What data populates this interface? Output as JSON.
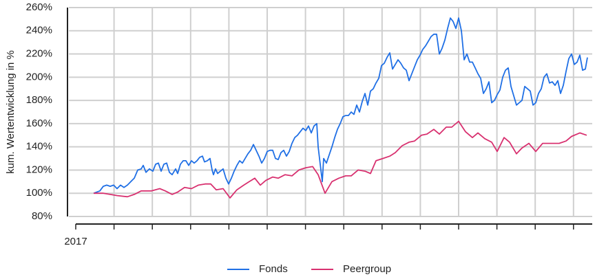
{
  "chart_data": {
    "type": "line",
    "y_label": "kum. Wertentwicklung in %",
    "xlim": [
      0,
      750
    ],
    "xticks": [
      {
        "value": 0,
        "label": "2017"
      },
      {
        "value": 55.6,
        "label": null
      },
      {
        "value": 111.2,
        "label": null
      },
      {
        "value": 166.8,
        "label": null
      },
      {
        "value": 222.4,
        "label": null
      },
      {
        "value": 278,
        "label": null
      },
      {
        "value": 333.6,
        "label": null
      },
      {
        "value": 389.2,
        "label": null
      },
      {
        "value": 444.8,
        "label": null
      },
      {
        "value": 500.4,
        "label": null
      },
      {
        "value": 556,
        "label": null
      },
      {
        "value": 611.6,
        "label": null
      },
      {
        "value": 667.2,
        "label": null
      },
      {
        "value": 722.8,
        "label": null
      }
    ],
    "ylim": [
      80,
      260
    ],
    "yticks": [
      {
        "value": 80,
        "label": "80%"
      },
      {
        "value": 100,
        "label": "100%"
      },
      {
        "value": 120,
        "label": "120%"
      },
      {
        "value": 140,
        "label": "140%"
      },
      {
        "value": 160,
        "label": "160%"
      },
      {
        "value": 180,
        "label": "180%"
      },
      {
        "value": 200,
        "label": "200%"
      },
      {
        "value": 220,
        "label": "220%"
      },
      {
        "value": 240,
        "label": "240%"
      },
      {
        "value": 260,
        "label": "260%"
      }
    ],
    "grid": true,
    "legend": "bottom",
    "series": [
      {
        "name": "Fonds",
        "color": "#1f6fe5",
        "x": [
          26,
          35,
          40,
          45,
          50,
          55,
          60,
          65,
          70,
          75,
          80,
          85,
          90,
          95,
          98,
          102,
          107,
          112,
          116,
          120,
          124,
          128,
          132,
          136,
          140,
          145,
          148,
          152,
          156,
          160,
          164,
          168,
          172,
          176,
          180,
          184,
          187,
          191,
          195,
          198,
          200,
          203,
          206,
          210,
          214,
          218,
          222,
          226,
          230,
          234,
          238,
          242,
          246,
          250,
          254,
          258,
          262,
          266,
          270,
          274,
          278,
          282,
          286,
          290,
          294,
          298,
          302,
          306,
          310,
          314,
          318,
          322,
          326,
          330,
          334,
          338,
          342,
          346,
          350,
          352,
          356,
          358,
          360,
          364,
          368,
          372,
          376,
          380,
          384,
          388,
          392,
          396,
          400,
          404,
          408,
          412,
          416,
          420,
          424,
          428,
          432,
          436,
          440,
          444,
          448,
          452,
          456,
          460,
          464,
          468,
          472,
          476,
          480,
          484,
          488,
          492,
          496,
          500,
          504,
          508,
          512,
          516,
          520,
          524,
          528,
          532,
          536,
          540,
          544,
          548,
          552,
          556,
          560,
          564,
          568,
          572,
          576,
          580,
          584,
          588,
          592,
          596,
          600,
          604,
          608,
          612,
          616,
          620,
          624,
          628,
          632,
          636,
          640,
          644,
          648,
          652,
          656,
          660,
          664,
          668,
          672,
          676,
          680,
          684,
          688,
          692,
          696,
          700,
          704,
          708,
          712,
          716,
          720,
          724,
          728,
          732,
          736,
          740,
          743
        ],
        "values": [
          100,
          102,
          106,
          107,
          106,
          107,
          104,
          107,
          105,
          107,
          110,
          113,
          120,
          121,
          124,
          118,
          121,
          119,
          125,
          126,
          119,
          125,
          126,
          118,
          116,
          121,
          117,
          125,
          128,
          128,
          124,
          128,
          126,
          128,
          131,
          132,
          127,
          128,
          130,
          120,
          116,
          121,
          117,
          119,
          121,
          113,
          108,
          113,
          119,
          124,
          128,
          126,
          130,
          134,
          137,
          142,
          137,
          132,
          126,
          130,
          136,
          137,
          137,
          130,
          129,
          135,
          137,
          132,
          136,
          143,
          148,
          150,
          153,
          156,
          154,
          158,
          152,
          158,
          160,
          140,
          120,
          110,
          130,
          126,
          133,
          140,
          148,
          155,
          160,
          166,
          167,
          167,
          170,
          168,
          176,
          170,
          179,
          186,
          176,
          188,
          190,
          195,
          199,
          210,
          212,
          217,
          221,
          207,
          211,
          215,
          212,
          208,
          206,
          197,
          203,
          209,
          215,
          219,
          224,
          227,
          231,
          235,
          237,
          237,
          220,
          225,
          232,
          242,
          251,
          248,
          242,
          251,
          240,
          215,
          220,
          213,
          213,
          208,
          203,
          199,
          186,
          190,
          196,
          178,
          180,
          185,
          189,
          200,
          206,
          208,
          192,
          184,
          176,
          178,
          180,
          192,
          190,
          188,
          176,
          178,
          186,
          190,
          200,
          203,
          195,
          196,
          193,
          197,
          186,
          193,
          205,
          216,
          220,
          211,
          213,
          219,
          206,
          207,
          217
        ]
      },
      {
        "name": "Peergroup",
        "color": "#d8306f",
        "x": [
          26,
          40,
          50,
          60,
          75,
          85,
          95,
          110,
          122,
          130,
          140,
          148,
          158,
          168,
          178,
          188,
          196,
          204,
          214,
          224,
          234,
          244,
          252,
          260,
          268,
          276,
          286,
          294,
          304,
          314,
          324,
          334,
          344,
          352,
          362,
          372,
          382,
          392,
          400,
          410,
          420,
          428,
          436,
          446,
          456,
          464,
          474,
          484,
          492,
          502,
          510,
          520,
          528,
          538,
          546,
          556,
          566,
          576,
          584,
          594,
          604,
          612,
          622,
          630,
          640,
          648,
          658,
          668,
          678,
          690,
          702,
          712,
          720,
          732,
          742
        ],
        "values": [
          100,
          100,
          99,
          98,
          97,
          99,
          102,
          102,
          104,
          102,
          99,
          101,
          105,
          104,
          107,
          108,
          108,
          103,
          104,
          96,
          103,
          107,
          110,
          113,
          107,
          111,
          114,
          113,
          116,
          115,
          120,
          122,
          123,
          116,
          100,
          110,
          113,
          115,
          115,
          120,
          119,
          117,
          128,
          130,
          132,
          135,
          141,
          144,
          145,
          150,
          151,
          155,
          151,
          157,
          157,
          162,
          153,
          148,
          152,
          147,
          144,
          136,
          148,
          144,
          134,
          139,
          143,
          136,
          143,
          143,
          143,
          145,
          149,
          152,
          150
        ]
      }
    ]
  }
}
